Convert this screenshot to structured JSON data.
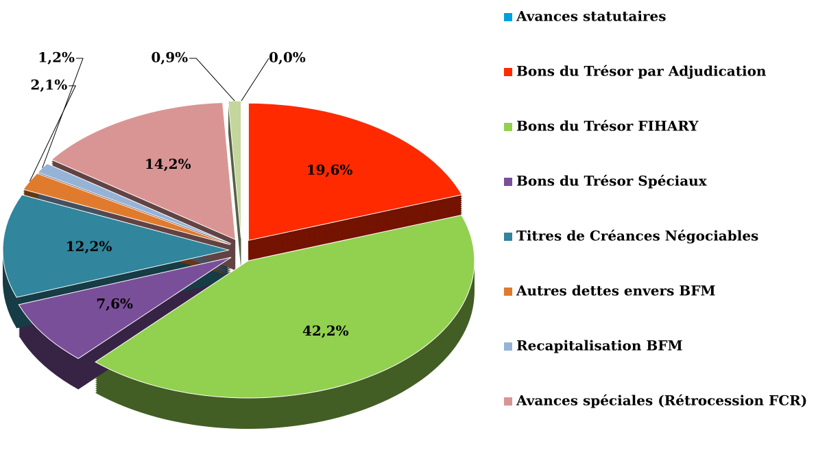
{
  "chart_data": {
    "type": "pie",
    "categories": [
      "Avances statutaires",
      "Bons du Trésor par Adjudication",
      "Bons du Trésor FIHARY",
      "Bons du Trésor Spéciaux",
      "Titres de Créances Négociables",
      "Autres dettes envers BFM",
      "Recapitalisation BFM",
      "Avances spéciales (Rétrocession FCR)",
      null
    ],
    "values": [
      0.0,
      19.6,
      42.2,
      7.6,
      12.2,
      2.1,
      1.2,
      14.2,
      0.9
    ],
    "value_labels": [
      "0,0%",
      "19,6%",
      "42,2%",
      "7,6%",
      "12,2%",
      "2,1%",
      "1,2%",
      "14,2%",
      "0,9%"
    ],
    "colors": [
      "#00a0e0",
      "#ff2a00",
      "#92d050",
      "#7a4f9a",
      "#31859c",
      "#e07b2e",
      "#95b3d7",
      "#d99594",
      "#c3d69b"
    ]
  }
}
